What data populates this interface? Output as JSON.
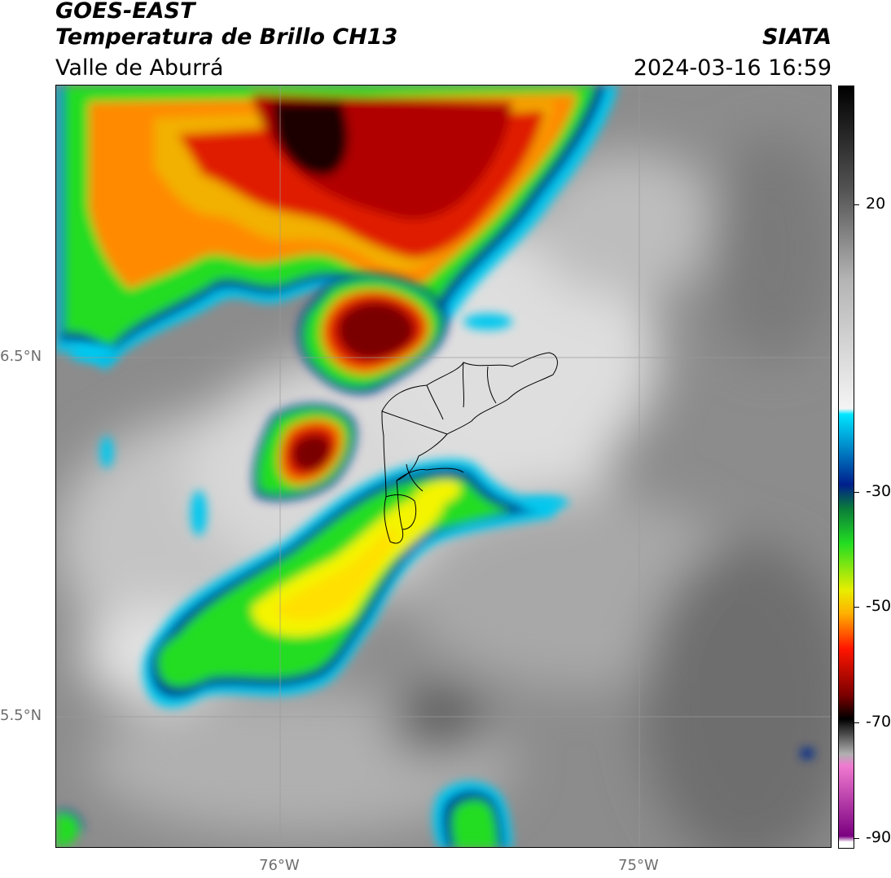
{
  "header": {
    "satellite": "GOES-EAST",
    "product": "Temperatura de Brillo CH13",
    "region": "Valle de Aburrá",
    "agency": "SIATA",
    "datetime": "2024-03-16 16:59"
  },
  "axes": {
    "lat_labels": [
      "6.5°N",
      "5.5°N"
    ],
    "lon_labels": [
      "76°W",
      "75°W"
    ]
  },
  "colorbar": {
    "tick_labels": [
      "20",
      "-30",
      "-50",
      "-70",
      "-90"
    ],
    "range": [
      -92,
      38
    ],
    "stops": [
      {
        "value": 38,
        "color": "#000000"
      },
      {
        "value": 20,
        "color": "#555555"
      },
      {
        "value": 5,
        "color": "#b4b4b4"
      },
      {
        "value": -17,
        "color": "#f4f4f4"
      },
      {
        "value": -18,
        "color": "#00e5ff"
      },
      {
        "value": -30,
        "color": "#001f8c"
      },
      {
        "value": -34,
        "color": "#0a7a3a"
      },
      {
        "value": -40,
        "color": "#22dd22"
      },
      {
        "value": -48,
        "color": "#e8ee00"
      },
      {
        "value": -52,
        "color": "#ffb000"
      },
      {
        "value": -58,
        "color": "#ff1500"
      },
      {
        "value": -66,
        "color": "#7a0000"
      },
      {
        "value": -70,
        "color": "#000000"
      },
      {
        "value": -76,
        "color": "#b0b0b0"
      },
      {
        "value": -78,
        "color": "#f07ad0"
      },
      {
        "value": -90,
        "color": "#7a0080"
      },
      {
        "value": -91,
        "color": "#ffffff"
      }
    ]
  },
  "colors": {
    "cold_top": "#7a0000",
    "deep_red": "#e01a00",
    "orange": "#ff8a00",
    "yellow": "#f4f400",
    "green": "#22dd22",
    "blue_edge": "#002a8c",
    "cyan": "#00c8ef",
    "clear_sky": "#8c8c8c",
    "cloud_grey": "#c8c8c8"
  }
}
